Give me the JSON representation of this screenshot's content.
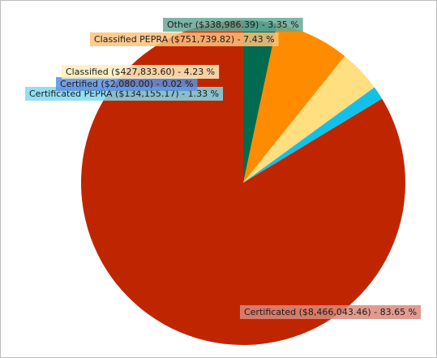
{
  "chart_data": {
    "type": "pie",
    "title": "",
    "slices": [
      {
        "name": "Certificated",
        "amount": "$8,466,043.46",
        "percent": 83.65,
        "text": "Certificated ($8,466,043.46) - 83.65 %",
        "color": "#bf2600",
        "label_bg": "#dc8a7a"
      },
      {
        "name": "Certificated PEPRA",
        "amount": "$134,155.17",
        "percent": 1.33,
        "text": "Certificated PEPRA ($134,155.17) - 1.33 %",
        "color": "#12c1e8",
        "label_bg": "#7fdbef"
      },
      {
        "name": "Certified",
        "amount": "$2,080.00",
        "percent": 0.02,
        "text": "Certified ($2,080.00) - 0.02 %",
        "color": "#2e6fd8",
        "label_bg": "#5b8fe0"
      },
      {
        "name": "Classified",
        "amount": "$427,833.60",
        "percent": 4.23,
        "text": "Classified ($427,833.60) - 4.23 %",
        "color": "#ffdf80",
        "label_bg": "#fff0bf"
      },
      {
        "name": "Classified PEPRA",
        "amount": "$751,739.82",
        "percent": 7.43,
        "text": "Classified PEPRA ($751,739.82) - 7.43 %",
        "color": "#ff8c00",
        "label_bg": "#ffc27a"
      },
      {
        "name": "Other",
        "amount": "$338,986.39",
        "percent": 3.35,
        "text": "Other ($338,986.39) - 3.35 %",
        "color": "#006b4f",
        "label_bg": "#66a896"
      }
    ]
  }
}
